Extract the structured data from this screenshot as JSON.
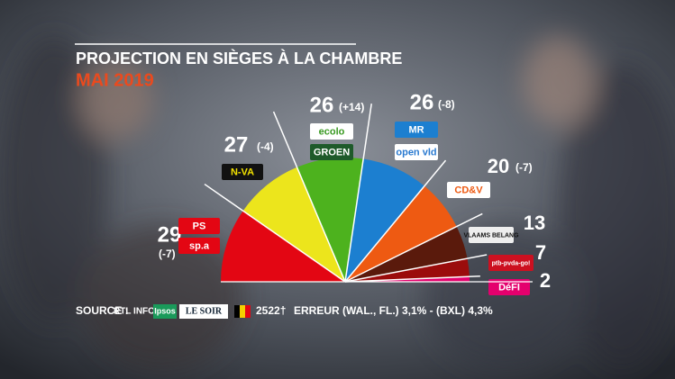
{
  "chart_data": {
    "type": "pie",
    "title": "PROJECTION EN SIÈGES À LA CHAMBRE",
    "subtitle": "MAI 2019",
    "categories": [
      [
        "PS",
        "sp.a"
      ],
      [
        "N-VA"
      ],
      [
        "ecolo",
        "GROEN"
      ],
      [
        "MR",
        "open vld"
      ],
      [
        "CD&V"
      ],
      [
        "VLAAMS BELANG"
      ],
      [
        "ptb-pvda-go!"
      ],
      [
        "DéFI"
      ]
    ],
    "values": [
      29,
      27,
      26,
      26,
      20,
      13,
      7,
      2
    ],
    "change_labels": [
      "(-7)",
      "(-4)",
      "(+14)",
      "(-8)",
      "(-7)",
      null,
      null,
      null
    ],
    "colors": [
      "#e30613",
      "#ece51c",
      "#4db21e",
      "#1c7fd0",
      "#ee5a12",
      "#5a1a0c",
      "#9b0c0c",
      "#e4006d"
    ]
  },
  "source": {
    "label": "SOURCE :",
    "logos": [
      "RTL INFO",
      "Ipsos",
      "LE SOIR"
    ],
    "sample": "2522†",
    "margin": "ERREUR (WAL., FL.) 3,1% - (BXL) 4,3%"
  }
}
